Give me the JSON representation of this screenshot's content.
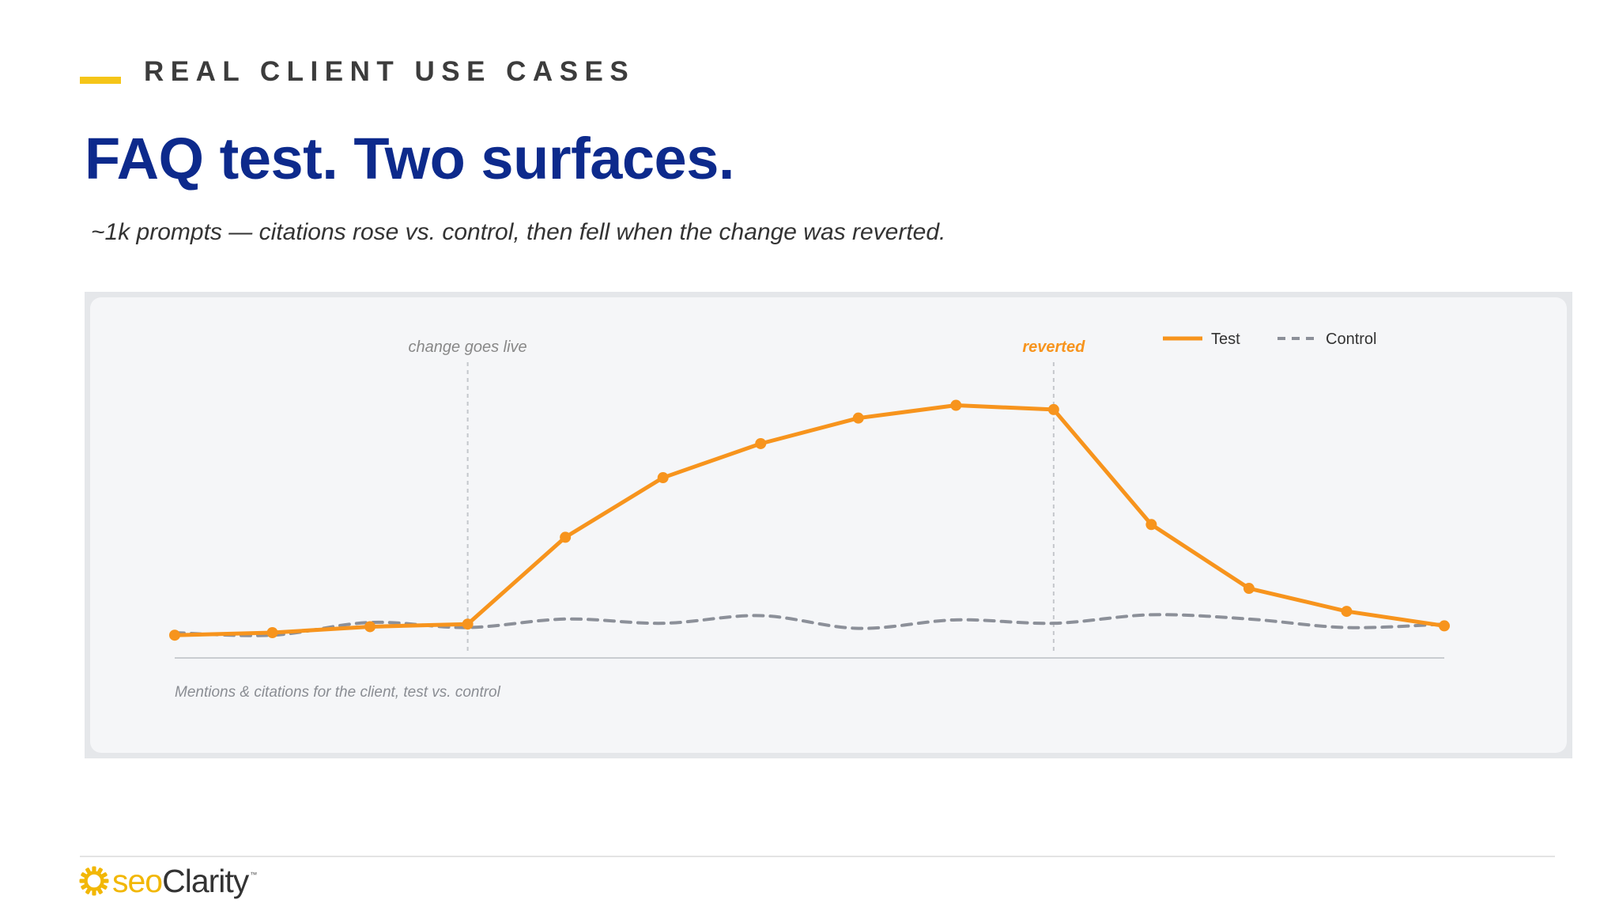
{
  "slide": {
    "eyebrow": "REAL CLIENT USE CASES",
    "title": "FAQ test. Two surfaces.",
    "subtitle": "~1k prompts — citations rose vs. control, then fell when the change was reverted."
  },
  "brand": {
    "logo_icon": "sun-icon",
    "logo_part1": "seo",
    "logo_part2": "Clarity",
    "logo_tm": "™",
    "colors": {
      "accent_yellow": "#f5c518",
      "title_blue": "#0d2a8c"
    }
  },
  "chart_data": {
    "type": "line",
    "title": "",
    "caption": "Mentions & citations for the client, test vs. control",
    "x": [
      1,
      2,
      3,
      4,
      5,
      6,
      7,
      8,
      9,
      10,
      11,
      12,
      13,
      14
    ],
    "series": [
      {
        "name": "Test",
        "color": "#f7941d",
        "style": "solid",
        "markers": true,
        "values": [
          1.0,
          1.3,
          2.0,
          2.3,
          12.5,
          19.5,
          23.5,
          26.5,
          28.0,
          27.5,
          14.0,
          6.5,
          3.8,
          2.1
        ]
      },
      {
        "name": "Control",
        "color": "#8c9099",
        "style": "dashed",
        "markers": false,
        "values": [
          1.3,
          1.0,
          2.5,
          1.9,
          2.9,
          2.4,
          3.3,
          1.8,
          2.8,
          2.4,
          3.4,
          2.9,
          1.9,
          2.3
        ]
      }
    ],
    "annotations": [
      {
        "x": 4,
        "label": "change goes live",
        "color": "#888888",
        "bold": false
      },
      {
        "x": 10,
        "label": "reverted",
        "color": "#f7941d",
        "bold": true
      }
    ],
    "legend_position": "top-right",
    "ylim": [
      0,
      30
    ],
    "grid": false,
    "axes_labels_visible": false
  }
}
